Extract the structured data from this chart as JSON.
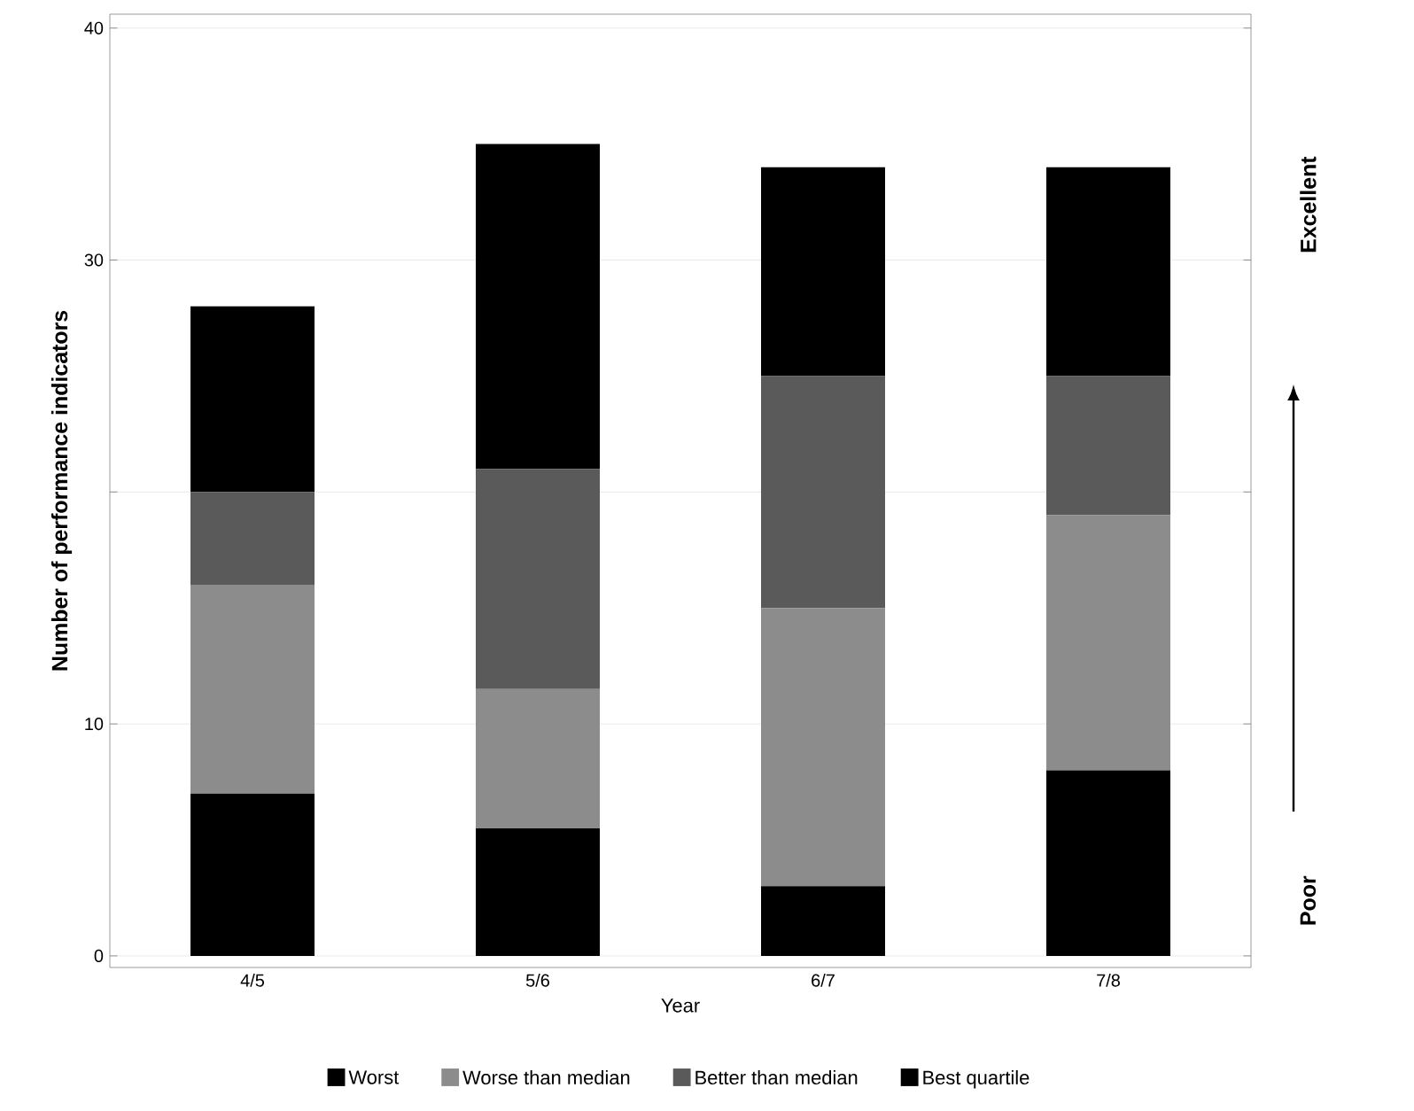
{
  "chart_data": {
    "type": "bar",
    "stacked": true,
    "xlabel": "Year",
    "ylabel": "Number of performance indicators",
    "categories": [
      "4/5",
      "5/6",
      "6/7",
      "7/8"
    ],
    "series": [
      {
        "name": "Worst",
        "color": "#000000",
        "values": [
          7,
          5.5,
          3,
          8
        ]
      },
      {
        "name": "Worse than median",
        "color": "#8c8c8c",
        "values": [
          9,
          6,
          12,
          11
        ]
      },
      {
        "name": "Better than median",
        "color": "#5a5a5a",
        "values": [
          4,
          9.5,
          10,
          6
        ]
      },
      {
        "name": "Best quartile",
        "color": "#000000",
        "values": [
          8,
          14,
          9,
          9
        ]
      }
    ],
    "ylim": [
      -0.5,
      40.6
    ],
    "yticks": [
      0,
      10,
      {
        "value": 20,
        "label": null
      },
      30,
      40
    ],
    "grid": "y",
    "legend": "bottom",
    "annotations": [
      "Excellent",
      "Poor"
    ]
  }
}
